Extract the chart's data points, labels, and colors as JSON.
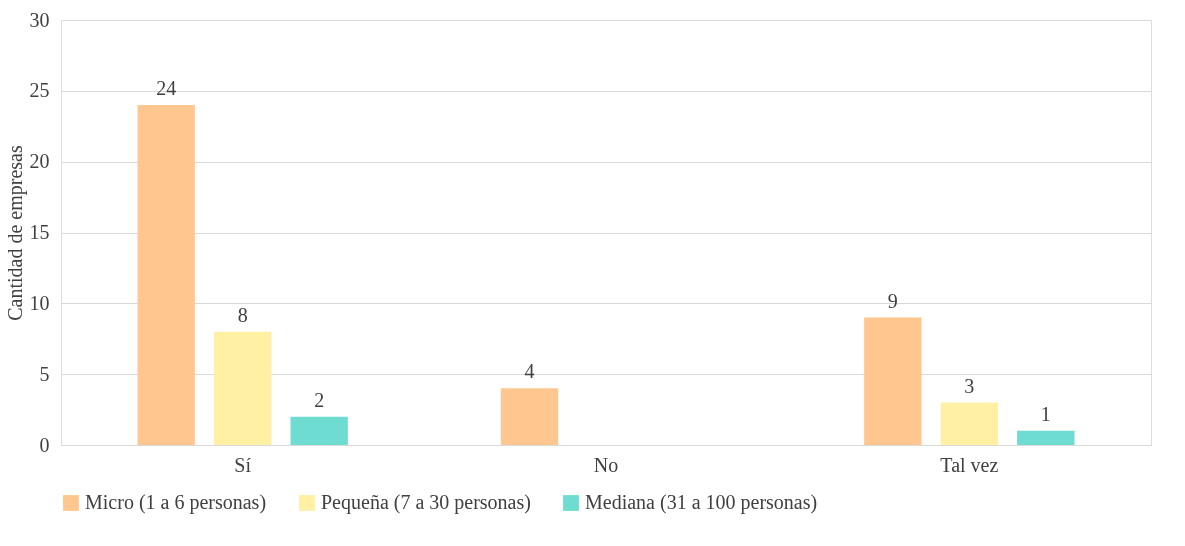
{
  "chart_data": {
    "type": "bar",
    "ylabel": "Cantidad de empresas",
    "categories": [
      "Sí",
      "No",
      "Tal vez"
    ],
    "series": [
      {
        "name": "Micro (1 a 6 personas)",
        "color": "#ffc78f",
        "values": [
          24,
          4,
          9
        ]
      },
      {
        "name": "Pequeña (7 a 30 personas)",
        "color": "#fff0a3",
        "values": [
          8,
          null,
          3
        ]
      },
      {
        "name": "Mediana (31 a 100 personas)",
        "color": "#6edcd0",
        "values": [
          2,
          null,
          1
        ]
      }
    ],
    "ylim": [
      0,
      30
    ],
    "yticks": [
      0,
      5,
      10,
      15,
      20,
      25,
      30
    ],
    "grid": "y",
    "legend": "bottom",
    "data_labels": true
  }
}
